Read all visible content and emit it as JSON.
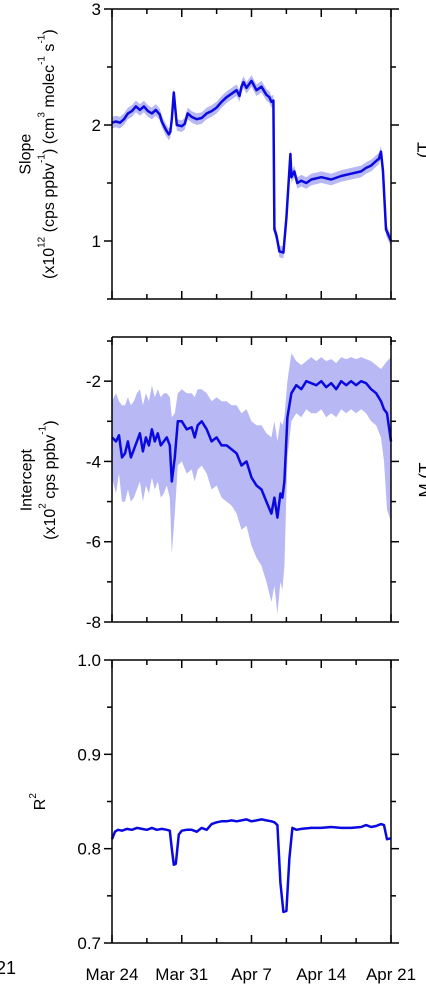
{
  "colors": {
    "line": "#0a0ae0",
    "band": "#b8b8f4",
    "axis": "#000000"
  },
  "edge_text": {
    "left_bottom": "21",
    "right_top": "(T",
    "right_mid": "M (T"
  },
  "x_axis": {
    "ticks": [
      "Mar 24",
      "Mar 31",
      "Apr 7",
      "Apr 14",
      "Apr 21"
    ]
  },
  "panels": [
    {
      "id": "slope",
      "ylabel_line1": "Slope",
      "ylabel_line2": "(x10<sup>12</sup> (cps ppbv<sup>-1</sup>) (cm<sup>3</sup> molec<sup>-1</sup> s<sup>-1</sup>)",
      "ytick_labels": [
        "1",
        "2",
        "3"
      ]
    },
    {
      "id": "intercept",
      "ylabel_line1": "Intercept",
      "ylabel_line2": "(x10<sup>2</sup> cps ppbv<sup>-1</sup>)",
      "ytick_labels": [
        "-8",
        "-6",
        "-4",
        "-2"
      ]
    },
    {
      "id": "r2",
      "ylabel_line1": "R<sup>2</sup>",
      "ylabel_line2": "",
      "ytick_labels": [
        "0.7",
        "0.8",
        "0.9",
        "1.0"
      ]
    }
  ],
  "chart_data": [
    {
      "type": "line",
      "xlabel": "",
      "ylabel": "Slope (x10^12 (cps ppbv^-1) (cm^3 molec^-1 s^-1)",
      "xlim": [
        0,
        28
      ],
      "ylim": [
        0.5,
        3.0
      ],
      "yticks": [
        1,
        2,
        3
      ],
      "x_tick_positions": [
        0,
        7,
        14,
        21,
        28
      ],
      "x_tick_labels": [
        "Mar 24",
        "Mar 31",
        "Apr 7",
        "Apr 14",
        "Apr 21"
      ],
      "grid": false,
      "series": [
        {
          "x": [
            0,
            0.4,
            0.8,
            1.2,
            1.6,
            2,
            2.4,
            2.8,
            3.2,
            3.6,
            4,
            4.4,
            4.8,
            5,
            5.4,
            5.7,
            5.85,
            6,
            6.2,
            6.5,
            7,
            7.3,
            7.6,
            8,
            8.5,
            9,
            9.5,
            10,
            10.5,
            11,
            11.5,
            12,
            12.5,
            12.8,
            13,
            13.2,
            13.5,
            14,
            14.5,
            15,
            15.5,
            15.8,
            16,
            16.2,
            16.3,
            16.5,
            16.8,
            17.2,
            17.5,
            17.9,
            18,
            18.3,
            18.6,
            19,
            19.5,
            20,
            21,
            22,
            23,
            24,
            25,
            25.5,
            26,
            26.5,
            26.8,
            27,
            27.2,
            27.5,
            28
          ],
          "y": [
            2.02,
            2.03,
            2.02,
            2.05,
            2.1,
            2.12,
            2.16,
            2.13,
            2.16,
            2.12,
            2.1,
            2.13,
            2.09,
            2.03,
            1.96,
            1.92,
            1.94,
            2.05,
            2.28,
            2.0,
            1.99,
            2.01,
            2.1,
            2.07,
            2.05,
            2.06,
            2.1,
            2.12,
            2.15,
            2.2,
            2.24,
            2.27,
            2.3,
            2.25,
            2.33,
            2.37,
            2.32,
            2.38,
            2.3,
            2.33,
            2.26,
            2.24,
            2.2,
            2.21,
            1.1,
            1.05,
            0.91,
            0.9,
            1.2,
            1.75,
            1.55,
            1.6,
            1.5,
            1.52,
            1.5,
            1.53,
            1.55,
            1.53,
            1.56,
            1.58,
            1.6,
            1.63,
            1.65,
            1.69,
            1.71,
            1.77,
            1.6,
            1.1,
            1.0
          ],
          "band": 0.05
        }
      ]
    },
    {
      "type": "line",
      "xlabel": "",
      "ylabel": "Intercept (x10^2 cps ppbv^-1)",
      "xlim": [
        0,
        28
      ],
      "ylim": [
        -8.0,
        -0.9
      ],
      "yticks": [
        -8,
        -6,
        -4,
        -2
      ],
      "x_tick_positions": [
        0,
        7,
        14,
        21,
        28
      ],
      "x_tick_labels": [
        "Mar 24",
        "Mar 31",
        "Apr 7",
        "Apr 14",
        "Apr 21"
      ],
      "grid": false,
      "series": [
        {
          "x": [
            0,
            0.4,
            0.7,
            1,
            1.3,
            1.6,
            1.9,
            2.2,
            2.5,
            2.8,
            3.1,
            3.4,
            3.7,
            4,
            4.3,
            4.6,
            4.9,
            5.2,
            5.5,
            5.8,
            6,
            6.3,
            6.6,
            7,
            7.5,
            8,
            8.3,
            8.6,
            9,
            9.5,
            10,
            10.5,
            11,
            11.5,
            12,
            12.5,
            13,
            13.5,
            14,
            14.5,
            15,
            15.5,
            16,
            16.3,
            16.6,
            16.9,
            17.1,
            17.3,
            17.6,
            18,
            18.5,
            19,
            19.5,
            20,
            20.5,
            21,
            21.5,
            22,
            22.5,
            23,
            23.5,
            24,
            24.5,
            25,
            25.5,
            26,
            26.5,
            27,
            27.3,
            27.6,
            28
          ],
          "y": [
            -3.4,
            -3.5,
            -3.35,
            -3.9,
            -3.8,
            -3.5,
            -3.9,
            -3.7,
            -3.5,
            -3.3,
            -3.75,
            -3.4,
            -3.6,
            -3.2,
            -3.5,
            -3.3,
            -3.6,
            -3.5,
            -3.4,
            -3.6,
            -4.5,
            -3.9,
            -3.0,
            -3.0,
            -3.2,
            -3.15,
            -3.4,
            -3.1,
            -3.0,
            -3.2,
            -3.5,
            -3.4,
            -3.6,
            -3.6,
            -3.7,
            -3.8,
            -4.1,
            -4.0,
            -4.4,
            -4.6,
            -4.7,
            -5.0,
            -5.3,
            -4.9,
            -5.4,
            -4.8,
            -4.9,
            -4.5,
            -2.9,
            -2.3,
            -2.1,
            -2.2,
            -2.0,
            -2.05,
            -2.1,
            -2.0,
            -2.15,
            -2.05,
            -2.2,
            -2.0,
            -2.1,
            -2.0,
            -2.1,
            -2.0,
            -2.05,
            -2.2,
            -2.3,
            -2.5,
            -2.7,
            -2.8,
            -3.5
          ],
          "band_upper": [
            -2.5,
            -2.3,
            -2.5,
            -2.6,
            -2.6,
            -2.4,
            -2.6,
            -2.5,
            -2.3,
            -2.2,
            -2.6,
            -2.3,
            -2.5,
            -2.1,
            -2.4,
            -2.2,
            -2.4,
            -2.3,
            -2.3,
            -2.4,
            -2.9,
            -2.8,
            -2.3,
            -2.2,
            -2.3,
            -2.3,
            -2.4,
            -2.2,
            -2.2,
            -2.3,
            -2.5,
            -2.4,
            -2.5,
            -2.5,
            -2.6,
            -2.6,
            -2.8,
            -2.7,
            -3.0,
            -3.1,
            -3.1,
            -3.3,
            -3.4,
            -3.0,
            -3.5,
            -3.0,
            -3.1,
            -2.9,
            -2.0,
            -1.3,
            -1.5,
            -1.6,
            -1.5,
            -1.4,
            -1.5,
            -1.4,
            -1.5,
            -1.45,
            -1.55,
            -1.4,
            -1.45,
            -1.4,
            -1.45,
            -1.4,
            -1.45,
            -1.5,
            -1.6,
            -1.7,
            -1.6,
            -1.5,
            -1.4
          ],
          "band_lower": [
            -4.4,
            -4.8,
            -4.3,
            -5.0,
            -5.0,
            -4.7,
            -5.0,
            -4.9,
            -4.7,
            -4.5,
            -5.0,
            -4.6,
            -4.8,
            -4.4,
            -4.7,
            -4.5,
            -4.9,
            -4.8,
            -4.6,
            -4.9,
            -6.3,
            -5.3,
            -4.1,
            -4.0,
            -4.3,
            -4.2,
            -4.5,
            -4.2,
            -4.1,
            -4.3,
            -4.7,
            -4.6,
            -4.9,
            -5.0,
            -5.1,
            -5.3,
            -5.7,
            -5.6,
            -6.1,
            -6.4,
            -6.6,
            -7.0,
            -7.5,
            -7.1,
            -7.8,
            -7.0,
            -7.2,
            -6.6,
            -3.9,
            -3.0,
            -2.8,
            -2.9,
            -2.7,
            -2.8,
            -2.8,
            -2.7,
            -2.9,
            -2.8,
            -2.9,
            -2.7,
            -2.8,
            -2.7,
            -2.8,
            -2.7,
            -2.8,
            -3.0,
            -3.1,
            -3.4,
            -4.0,
            -5.2,
            -5.5
          ]
        }
      ]
    },
    {
      "type": "line",
      "xlabel": "",
      "ylabel": "R^2",
      "xlim": [
        0,
        28
      ],
      "ylim": [
        0.7,
        1.0
      ],
      "yticks": [
        0.7,
        0.8,
        0.9,
        1.0
      ],
      "x_tick_positions": [
        0,
        7,
        14,
        21,
        28
      ],
      "x_tick_labels": [
        "Mar 24",
        "Mar 31",
        "Apr 7",
        "Apr 14",
        "Apr 21"
      ],
      "grid": false,
      "series": [
        {
          "x": [
            0,
            0.3,
            0.6,
            1,
            1.5,
            2,
            2.5,
            3,
            3.5,
            4,
            4.5,
            5,
            5.5,
            5.8,
            6,
            6.2,
            6.4,
            6.7,
            7,
            7.5,
            8,
            8.5,
            9,
            9.5,
            10,
            10.5,
            11,
            11.5,
            12,
            12.5,
            13,
            13.5,
            14,
            14.5,
            15,
            15.5,
            16,
            16.3,
            16.6,
            16.9,
            17.2,
            17.5,
            17.8,
            18.1,
            18.5,
            19,
            20,
            21,
            22,
            23,
            24,
            25,
            25.5,
            26,
            26.5,
            27,
            27.3,
            27.6,
            28
          ],
          "y": [
            0.81,
            0.818,
            0.82,
            0.819,
            0.821,
            0.82,
            0.822,
            0.821,
            0.82,
            0.822,
            0.82,
            0.821,
            0.82,
            0.819,
            0.8,
            0.783,
            0.784,
            0.815,
            0.819,
            0.82,
            0.82,
            0.818,
            0.822,
            0.82,
            0.826,
            0.828,
            0.829,
            0.829,
            0.83,
            0.829,
            0.83,
            0.831,
            0.829,
            0.83,
            0.831,
            0.83,
            0.829,
            0.828,
            0.825,
            0.764,
            0.733,
            0.734,
            0.79,
            0.822,
            0.82,
            0.821,
            0.822,
            0.822,
            0.823,
            0.822,
            0.822,
            0.823,
            0.825,
            0.823,
            0.824,
            0.826,
            0.825,
            0.81,
            0.811
          ],
          "band": 0.001
        }
      ]
    }
  ]
}
